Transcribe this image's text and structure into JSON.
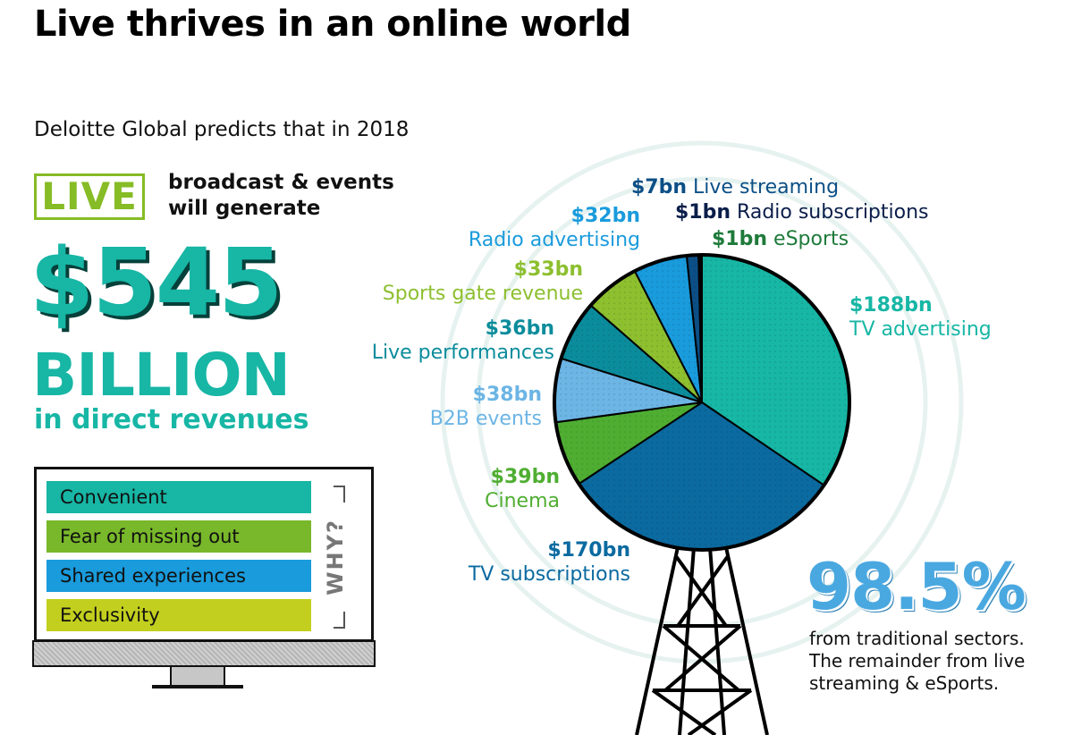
{
  "title": "Live thrives in an online world",
  "subtitle": "Deloitte Global predicts that in 2018",
  "headline": {
    "live_word": "LIVE",
    "live_desc_line1": "broadcast & events",
    "live_desc_line2": "will generate",
    "amount": "$545",
    "unit": "BILLION",
    "sub": "in direct revenues"
  },
  "why": {
    "label": "WHY?",
    "reasons": [
      {
        "label": "Convenient",
        "color": "#17b6a5"
      },
      {
        "label": "Fear of missing out",
        "color": "#78b82a"
      },
      {
        "label": "Shared experiences",
        "color": "#199bdc"
      },
      {
        "label": "Exclusivity",
        "color": "#c2cf1e"
      }
    ]
  },
  "chart_data": {
    "type": "pie",
    "unit": "$bn",
    "slices": [
      {
        "label": "TV advertising",
        "value": 188,
        "value_label": "$188bn",
        "color": "#17b6a5",
        "label_color": "#17b6a5"
      },
      {
        "label": "TV subscriptions",
        "value": 170,
        "value_label": "$170bn",
        "color": "#0b6aa0",
        "label_color": "#0b6aa0"
      },
      {
        "label": "Cinema",
        "value": 39,
        "value_label": "$39bn",
        "color": "#4fae32",
        "label_color": "#4fae32"
      },
      {
        "label": "B2B events",
        "value": 38,
        "value_label": "$38bn",
        "color": "#6cb5e5",
        "label_color": "#6cb5e5"
      },
      {
        "label": "Live performances",
        "value": 36,
        "value_label": "$36bn",
        "color": "#0b8c9c",
        "label_color": "#0b8c9c"
      },
      {
        "label": "Sports gate revenue",
        "value": 33,
        "value_label": "$33bn",
        "color": "#8dbf2f",
        "label_color": "#8dbf2f"
      },
      {
        "label": "Radio advertising",
        "value": 32,
        "value_label": "$32bn",
        "color": "#199bdc",
        "label_color": "#199bdc"
      },
      {
        "label": "Live streaming",
        "value": 7,
        "value_label": "$7bn",
        "color": "#0c4f86",
        "label_color": "#0c4f86"
      },
      {
        "label": "Radio subscriptions",
        "value": 1,
        "value_label": "$1bn",
        "color": "#0a1e4a",
        "label_color": "#0a1e4a"
      },
      {
        "label": "eSports",
        "value": 1,
        "value_label": "$1bn",
        "color": "#1e7a3a",
        "label_color": "#1e7a3a"
      }
    ]
  },
  "footnote": {
    "percent": "98.5%",
    "line1": "from traditional sectors.",
    "line2": "The remainder from live",
    "line3": "streaming & eSports."
  }
}
